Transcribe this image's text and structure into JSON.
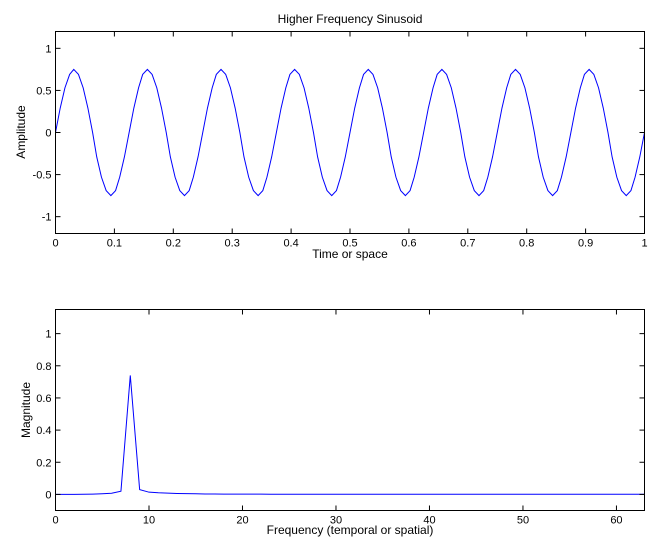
{
  "colors": {
    "line": "#0000ff",
    "axes": "#000000",
    "background": "#ffffff"
  },
  "chart_data": [
    {
      "type": "line",
      "title": "Higher Frequency Sinusoid",
      "xlabel": "Time or space",
      "ylabel": "Amplitude",
      "xlim": [
        0,
        1
      ],
      "ylim": [
        -1.2,
        1.2
      ],
      "xticks": [
        0,
        0.1,
        0.2,
        0.3,
        0.4,
        0.5,
        0.6,
        0.7,
        0.8,
        0.9,
        1
      ],
      "xtick_labels": [
        "0",
        "0.1",
        "0.2",
        "0.3",
        "0.4",
        "0.5",
        "0.6",
        "0.7",
        "0.8",
        "0.9",
        "1"
      ],
      "yticks": [
        -1,
        -0.5,
        0,
        0.5,
        1
      ],
      "ytick_labels": [
        "-1",
        "-0.5",
        "0",
        "0.5",
        "1"
      ],
      "grid": false,
      "series": [
        {
          "color": "#0000ff",
          "x": [
            0,
            0.008,
            0.016,
            0.024,
            0.031,
            0.039,
            0.047,
            0.055,
            0.063,
            0.07,
            0.078,
            0.086,
            0.094,
            0.102,
            0.109,
            0.117,
            0.125,
            0.133,
            0.141,
            0.148,
            0.156,
            0.164,
            0.172,
            0.18,
            0.188,
            0.195,
            0.203,
            0.211,
            0.219,
            0.227,
            0.234,
            0.242,
            0.25,
            0.258,
            0.266,
            0.273,
            0.281,
            0.289,
            0.297,
            0.305,
            0.313,
            0.32,
            0.328,
            0.336,
            0.344,
            0.352,
            0.359,
            0.367,
            0.375,
            0.383,
            0.391,
            0.398,
            0.406,
            0.414,
            0.422,
            0.43,
            0.438,
            0.445,
            0.453,
            0.461,
            0.469,
            0.477,
            0.484,
            0.492,
            0.5,
            0.508,
            0.516,
            0.523,
            0.531,
            0.539,
            0.547,
            0.555,
            0.563,
            0.57,
            0.578,
            0.586,
            0.594,
            0.602,
            0.609,
            0.617,
            0.625,
            0.633,
            0.641,
            0.648,
            0.656,
            0.664,
            0.672,
            0.68,
            0.688,
            0.695,
            0.703,
            0.711,
            0.719,
            0.727,
            0.734,
            0.742,
            0.75,
            0.758,
            0.766,
            0.773,
            0.781,
            0.789,
            0.797,
            0.805,
            0.813,
            0.82,
            0.828,
            0.836,
            0.844,
            0.852,
            0.859,
            0.867,
            0.875,
            0.883,
            0.891,
            0.898,
            0.906,
            0.914,
            0.922,
            0.93,
            0.938,
            0.945,
            0.953,
            0.961,
            0.969,
            0.977,
            0.984,
            0.992,
            1.0
          ],
          "y": [
            0,
            0.29,
            0.53,
            0.69,
            0.75,
            0.69,
            0.53,
            0.29,
            0,
            -0.29,
            -0.53,
            -0.69,
            -0.75,
            -0.69,
            -0.53,
            -0.29,
            0,
            0.29,
            0.53,
            0.69,
            0.75,
            0.69,
            0.53,
            0.29,
            0,
            -0.29,
            -0.53,
            -0.69,
            -0.75,
            -0.69,
            -0.53,
            -0.29,
            0,
            0.29,
            0.53,
            0.69,
            0.75,
            0.69,
            0.53,
            0.29,
            0,
            -0.29,
            -0.53,
            -0.69,
            -0.75,
            -0.69,
            -0.53,
            -0.29,
            0,
            0.29,
            0.53,
            0.69,
            0.75,
            0.69,
            0.53,
            0.29,
            0,
            -0.29,
            -0.53,
            -0.69,
            -0.75,
            -0.69,
            -0.53,
            -0.29,
            0,
            0.29,
            0.53,
            0.69,
            0.75,
            0.69,
            0.53,
            0.29,
            0,
            -0.29,
            -0.53,
            -0.69,
            -0.75,
            -0.69,
            -0.53,
            -0.29,
            0,
            0.29,
            0.53,
            0.69,
            0.75,
            0.69,
            0.53,
            0.29,
            0,
            -0.29,
            -0.53,
            -0.69,
            -0.75,
            -0.69,
            -0.53,
            -0.29,
            0,
            0.29,
            0.53,
            0.69,
            0.75,
            0.69,
            0.53,
            0.29,
            0,
            -0.29,
            -0.53,
            -0.69,
            -0.75,
            -0.69,
            -0.53,
            -0.29,
            0,
            0.29,
            0.53,
            0.69,
            0.75,
            0.69,
            0.53,
            0.29,
            0,
            -0.29,
            -0.53,
            -0.69,
            -0.75,
            -0.69,
            -0.53,
            -0.29,
            0
          ]
        }
      ]
    },
    {
      "type": "line",
      "title": "",
      "xlabel": "Frequency (temporal or spatial)",
      "ylabel": "Magnitude",
      "xlim": [
        0,
        63
      ],
      "ylim": [
        -0.1,
        1.15
      ],
      "xticks": [
        0,
        10,
        20,
        30,
        40,
        50,
        60
      ],
      "xtick_labels": [
        "0",
        "10",
        "20",
        "30",
        "40",
        "50",
        "60"
      ],
      "yticks": [
        0,
        0.2,
        0.4,
        0.6,
        0.8,
        1
      ],
      "ytick_labels": [
        "0",
        "0.2",
        "0.4",
        "0.6",
        "0.8",
        "1"
      ],
      "grid": false,
      "series": [
        {
          "color": "#0000ff",
          "x": [
            0,
            1,
            2,
            3,
            4,
            5,
            6,
            7,
            8,
            9,
            10,
            11,
            12,
            13,
            14,
            15,
            16,
            17,
            18,
            19,
            20,
            21,
            22,
            23,
            24,
            25,
            26,
            27,
            28,
            29,
            30,
            31,
            32,
            33,
            34,
            35,
            36,
            37,
            38,
            39,
            40,
            41,
            42,
            43,
            44,
            45,
            46,
            47,
            48,
            49,
            50,
            51,
            52,
            53,
            54,
            55,
            56,
            57,
            58,
            59,
            60,
            61,
            62,
            63
          ],
          "y": [
            0,
            0,
            0,
            0.001,
            0.002,
            0.004,
            0.007,
            0.02,
            0.74,
            0.03,
            0.014,
            0.01,
            0.008,
            0.006,
            0.005,
            0.004,
            0.003,
            0.003,
            0.002,
            0.002,
            0.002,
            0.002,
            0.002,
            0.001,
            0.001,
            0.001,
            0.001,
            0.001,
            0.001,
            0.001,
            0.001,
            0.001,
            0.001,
            0.001,
            0.001,
            0.001,
            0.001,
            0.001,
            0.001,
            0.001,
            0.001,
            0.001,
            0.001,
            0.001,
            0.001,
            0.001,
            0.001,
            0.001,
            0.001,
            0.001,
            0.001,
            0.001,
            0.001,
            0.001,
            0.001,
            0.001,
            0.001,
            0.001,
            0.001,
            0.001,
            0.001,
            0.001,
            0.001,
            0.001
          ]
        }
      ]
    }
  ]
}
